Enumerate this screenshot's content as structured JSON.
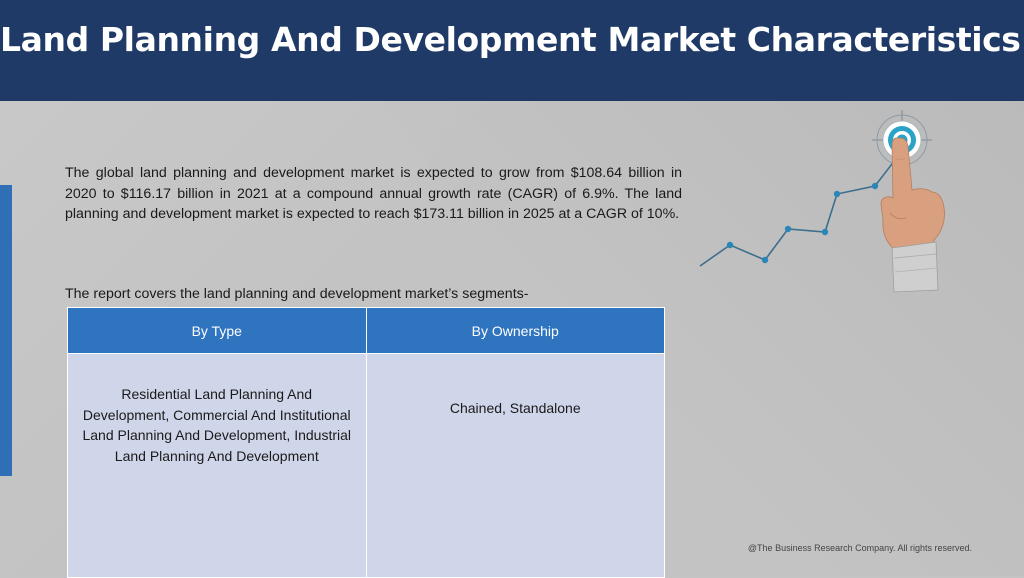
{
  "header": {
    "title": "Land Planning And Development Market Characteristics:"
  },
  "intro": {
    "text": "The global land planning and development market is expected to grow from $108.64 billion in 2020 to $116.17 billion in 2021 at a compound annual growth rate (CAGR) of 6.9%. The land planning and development market is expected to reach $173.11 billion in 2025 at a CAGR of 10%."
  },
  "segments": {
    "label": "The report covers the land planning and development market’s segments-",
    "table": {
      "headers": [
        "By Type",
        "By Ownership"
      ],
      "cells": [
        "Residential Land Planning And Development, Commercial And Institutional Land Planning And Development, Industrial Land Planning And Development",
        "Chained, Standalone"
      ]
    }
  },
  "graphic": {
    "icon": "hand-pointing-target-growth-line-icon"
  },
  "colors": {
    "header_bg": "#1f3a66",
    "table_header_bg": "#2e74bf",
    "table_cell_bg": "#d0d6ea",
    "accent": "#2f6fb5",
    "target_teal": "#2aa3c7"
  },
  "footer": {
    "copyright": "@The Business Research Company. All rights reserved."
  }
}
